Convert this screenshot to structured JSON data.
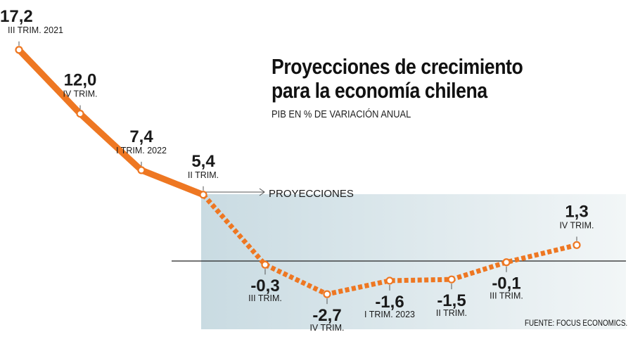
{
  "title_line1": "Proyecciones de crecimiento",
  "title_line2": "para la economía chilena",
  "subtitle": "PIB EN % DE VARIACIÓN ANUAL",
  "source": "FUENTE: FOCUS ECONOMICS.",
  "projection_label": "PROYECCIONES",
  "colors": {
    "line": "#ee7722",
    "shade_start": "#c9dbe2",
    "shade_end": "#f2f6f7",
    "axis": "#222222"
  },
  "chart_data": {
    "type": "line",
    "categories": [
      "III TRIM. 2021",
      "IV TRIM.",
      "I TRIM. 2022",
      "II TRIM.",
      "III TRIM.",
      "IV TRIM.",
      "I TRIM. 2023",
      "II TRIM.",
      "III TRIM.",
      "IV TRIM."
    ],
    "values": [
      17.2,
      12.0,
      7.4,
      5.4,
      -0.3,
      -2.7,
      -1.6,
      -1.5,
      -0.1,
      1.3
    ],
    "value_labels": [
      "17,2",
      "12,0",
      "7,4",
      "5,4",
      "-0,3",
      "-2,7",
      "-1,6",
      "-1,5",
      "-0,1",
      "1,3"
    ],
    "actual_count": 4,
    "projection_start_index": 3
  }
}
